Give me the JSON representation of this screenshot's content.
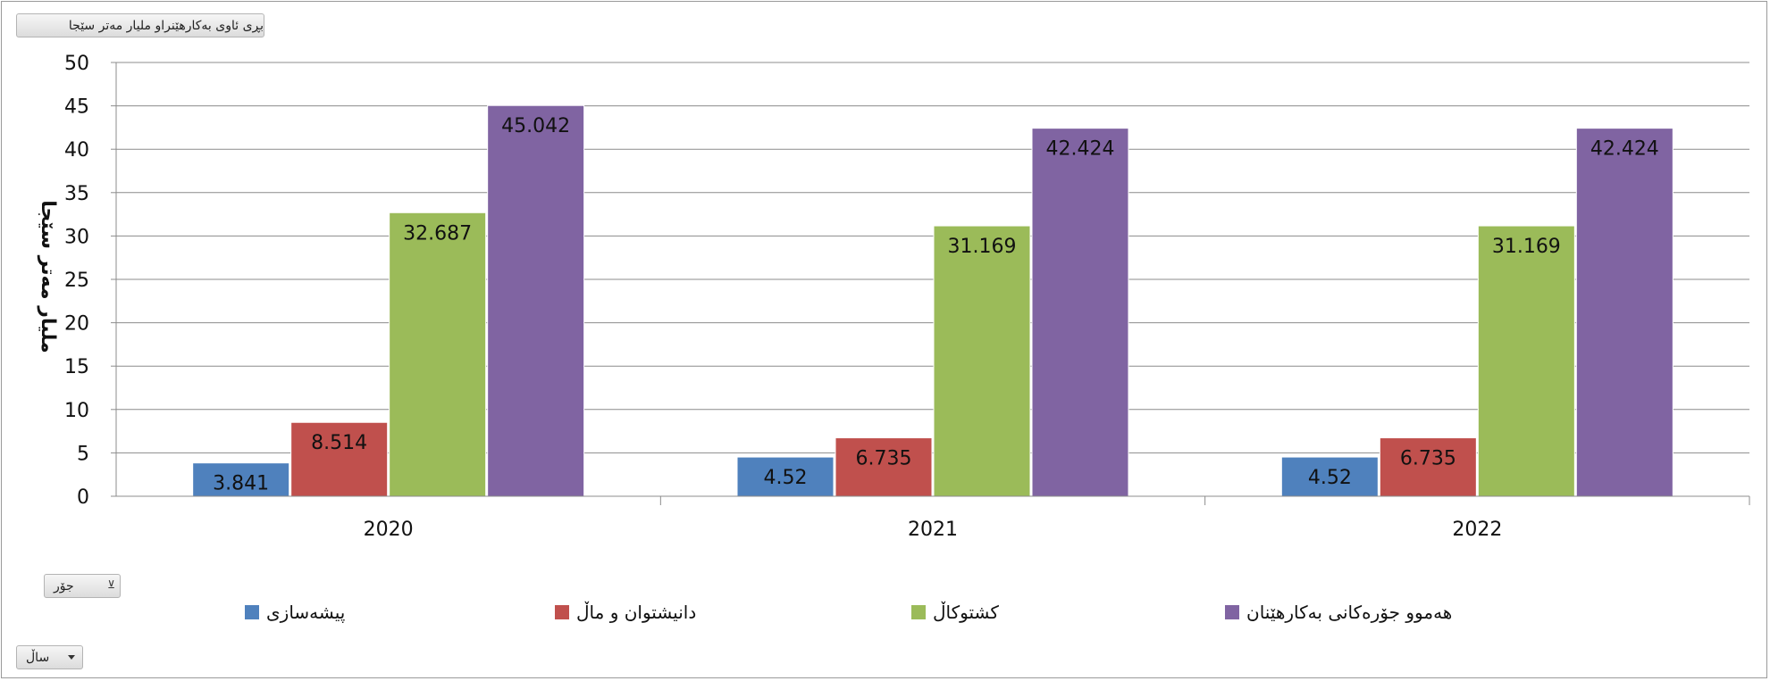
{
  "controls": {
    "measure_button": "بڕی ئاوی بەکارهێنراو ملیار مەتر سێجا",
    "type_filter": "جۆر",
    "year_filter": "ساڵ"
  },
  "chart_data": {
    "type": "bar",
    "categories": [
      "2020",
      "2021",
      "2022"
    ],
    "series": [
      {
        "name": "پیشەسازی",
        "color": "#4f81bd",
        "values": [
          3.841,
          4.52,
          4.52
        ]
      },
      {
        "name": "دانیشتوان و ماڵ",
        "color": "#c0504d",
        "values": [
          8.514,
          6.735,
          6.735
        ]
      },
      {
        "name": "کشتوکاڵ",
        "color": "#9bbb59",
        "values": [
          32.687,
          31.169,
          31.169
        ]
      },
      {
        "name": "هەموو جۆرەکانی بەکارهێنان",
        "color": "#8064a2",
        "values": [
          45.042,
          42.424,
          42.424
        ]
      }
    ],
    "data_labels": [
      [
        "3.841",
        "4.52",
        "4.52"
      ],
      [
        "8.514",
        "6.735",
        "6.735"
      ],
      [
        "32.687",
        "31.169",
        "31.169"
      ],
      [
        "45.042",
        "42.424",
        "42.424"
      ]
    ],
    "ylabel": "ملیار مەتر سێجا",
    "xlabel": "",
    "ylim": [
      0,
      50
    ],
    "yticks": [
      0,
      5,
      10,
      15,
      20,
      25,
      30,
      35,
      40,
      45,
      50
    ],
    "grid": true,
    "legend_position": "bottom"
  }
}
